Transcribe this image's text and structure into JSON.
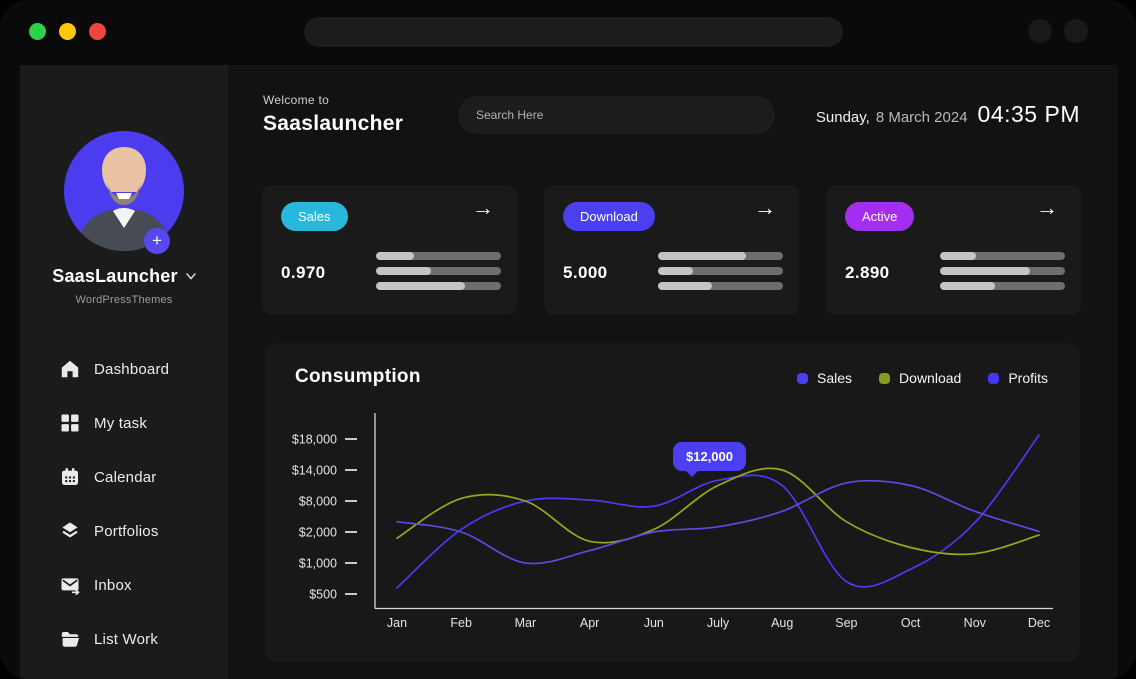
{
  "window": {
    "traffic_light_colors": [
      "#2fd14b",
      "#fcc708",
      "#ee453c"
    ]
  },
  "sidebar": {
    "profile": {
      "name": "SaasLauncher",
      "org": "WordPressThemes"
    },
    "items": [
      {
        "label": "Dashboard",
        "icon": "home-icon"
      },
      {
        "label": "My task",
        "icon": "grid-icon"
      },
      {
        "label": "Calendar",
        "icon": "calendar-icon"
      },
      {
        "label": "Portfolios",
        "icon": "layers-icon"
      },
      {
        "label": "Inbox",
        "icon": "inbox-icon"
      },
      {
        "label": "List Work",
        "icon": "folder-icon"
      }
    ]
  },
  "header": {
    "welcome_small": "Welcome to",
    "brand": "Saaslauncher",
    "search_placeholder": "Search Here",
    "date_day": "Sunday,",
    "date_rest": "8 March 2024",
    "time": "04:35 PM"
  },
  "stats": [
    {
      "badge": "Sales",
      "badge_color": "#2ab7dd",
      "value": "0.970",
      "bars": [
        30,
        44,
        71
      ]
    },
    {
      "badge": "Download",
      "badge_color": "#4b3ff0",
      "value": "5.000",
      "bars": [
        70,
        28,
        43
      ]
    },
    {
      "badge": "Active",
      "badge_color": "#a32ef1",
      "value": "2.890",
      "bars": [
        29,
        72,
        44
      ]
    }
  ],
  "chart_data": {
    "type": "line",
    "title": "Consumption",
    "categories": [
      "Jan",
      "Feb",
      "Mar",
      "Apr",
      "Jun",
      "July",
      "Aug",
      "Sep",
      "Oct",
      "Nov",
      "Dec"
    ],
    "yticks": {
      "labels": [
        "$18,000",
        "$14,000",
        "$8,000",
        "$2,000",
        "$1,000",
        "$500"
      ],
      "values": [
        18000,
        14000,
        8000,
        2000,
        1000,
        500
      ]
    },
    "series": [
      {
        "name": "Sales",
        "color": "#4a3af5",
        "values": [
          600,
          2500,
          8000,
          8200,
          7000,
          12000,
          11000,
          700,
          900,
          3800,
          18500
        ]
      },
      {
        "name": "Download",
        "color": "#97a81f",
        "values": [
          1800,
          8500,
          8000,
          1700,
          2500,
          11000,
          14000,
          4000,
          1500,
          1300,
          1900
        ]
      },
      {
        "name": "Profits",
        "color": "#5b4be0",
        "values": [
          4000,
          2000,
          1000,
          1400,
          2000,
          3000,
          6000,
          11500,
          11000,
          6000,
          2100
        ]
      }
    ],
    "legend": [
      {
        "label": "Sales",
        "color": "#4b3ff0"
      },
      {
        "label": "Download",
        "color": "#8a9c1e"
      },
      {
        "label": "Profits",
        "color": "#4536f5"
      }
    ],
    "legend_position": "top-right",
    "grid": false,
    "tooltip": {
      "label": "$12,000",
      "series": "Sales"
    }
  }
}
